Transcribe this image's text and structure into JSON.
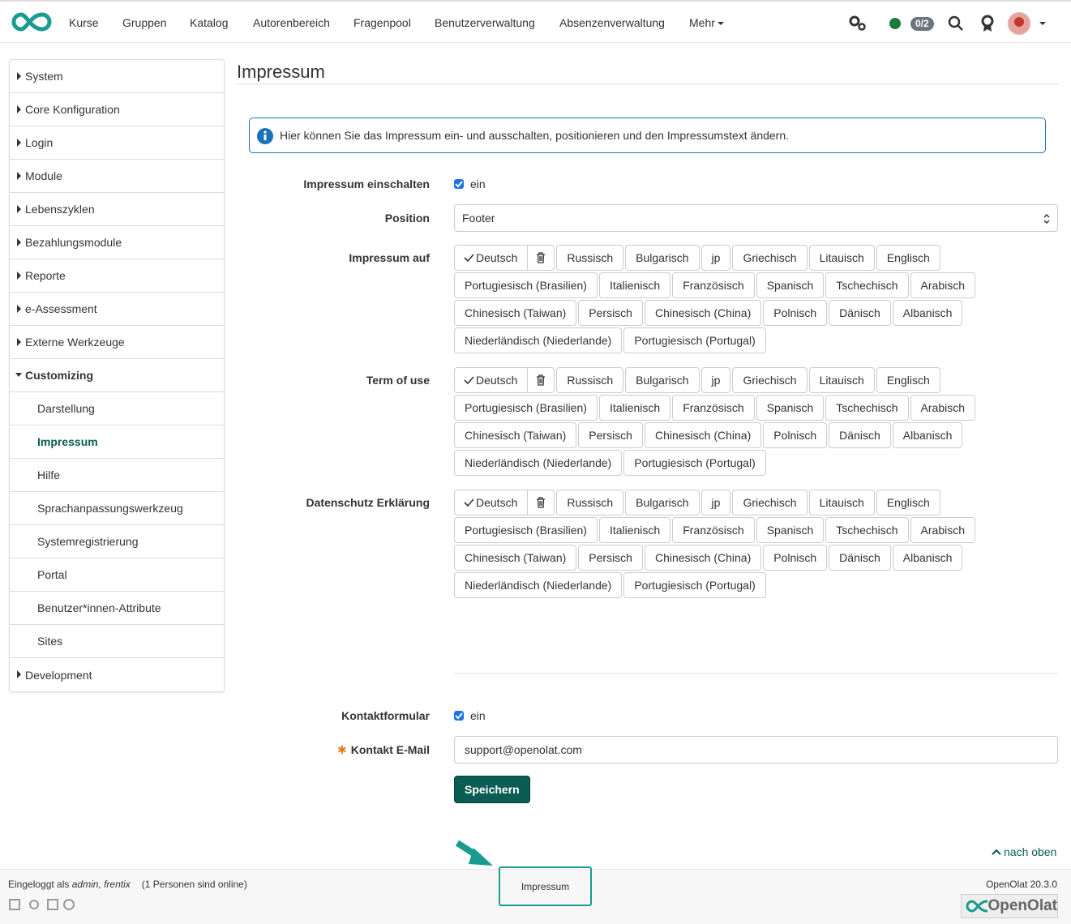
{
  "nav": {
    "items": [
      "Kurse",
      "Gruppen",
      "Katalog",
      "Autorenbereich",
      "Fragenpool",
      "Benutzerverwaltung",
      "Absenzenverwaltung"
    ],
    "more": "Mehr",
    "badge": "0/2"
  },
  "sidebar": {
    "items": [
      {
        "label": "System"
      },
      {
        "label": "Core Konfiguration"
      },
      {
        "label": "Login"
      },
      {
        "label": "Module"
      },
      {
        "label": "Lebenszyklen"
      },
      {
        "label": "Bezahlungsmodule"
      },
      {
        "label": "Reporte"
      },
      {
        "label": "e-Assessment"
      },
      {
        "label": "Externe Werkzeuge"
      },
      {
        "label": "Customizing",
        "expanded": true,
        "children": [
          {
            "label": "Darstellung"
          },
          {
            "label": "Impressum",
            "active": true
          },
          {
            "label": "Hilfe"
          },
          {
            "label": "Sprachanpassungswerkzeug"
          },
          {
            "label": "Systemregistrierung"
          },
          {
            "label": "Portal"
          },
          {
            "label": "Benutzer*innen-Attribute"
          },
          {
            "label": "Sites"
          }
        ]
      },
      {
        "label": "Development"
      }
    ]
  },
  "main": {
    "title": "Impressum",
    "info": "Hier können Sie das Impressum ein- und ausschalten, positionieren und den Impressumstext ändern.",
    "enable": {
      "label": "Impressum einschalten",
      "checkbox": "ein",
      "checked": true
    },
    "position": {
      "label": "Position",
      "value": "Footer"
    },
    "language_fields": [
      {
        "label": "Impressum auf"
      },
      {
        "label": "Term of use"
      },
      {
        "label": "Datenschutz Erklärung"
      }
    ],
    "languages": [
      "Deutsch",
      "Russisch",
      "Bulgarisch",
      "jp",
      "Griechisch",
      "Litauisch",
      "Englisch",
      "Portugiesisch (Brasilien)",
      "Italienisch",
      "Französisch",
      "Spanisch",
      "Tschechisch",
      "Arabisch",
      "Chinesisch (Taiwan)",
      "Persisch",
      "Chinesisch (China)",
      "Polnisch",
      "Dänisch",
      "Albanisch",
      "Niederländisch (Niederlande)",
      "Portugiesisch (Portugal)"
    ],
    "contact_form": {
      "label": "Kontaktformular",
      "checkbox": "ein",
      "checked": true
    },
    "contact_email": {
      "label": "Kontakt E-Mail",
      "value": "support@openolat.com",
      "required": true
    },
    "save": "Speichern"
  },
  "footer": {
    "top": "nach oben",
    "logged_in": "Eingeloggt als",
    "user": "admin, frentix",
    "online": "(1 Personen sind online)",
    "impressum": "Impressum",
    "version": "OpenOlat 20.3.0",
    "brand": "OpenOlat"
  }
}
